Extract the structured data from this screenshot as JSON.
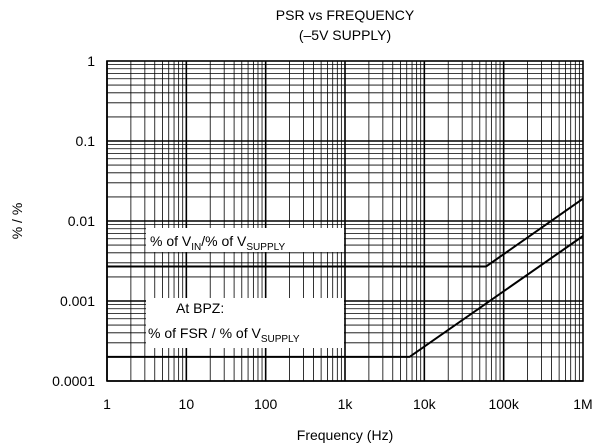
{
  "chart_data": {
    "type": "line",
    "title": "PSR vs FREQUENCY",
    "subtitle": "(–5V SUPPLY)",
    "xlabel": "Frequency (Hz)",
    "ylabel": "% / %",
    "xscale": "log",
    "yscale": "log",
    "xlim": [
      1,
      1000000
    ],
    "ylim": [
      0.0001,
      1
    ],
    "grid": true,
    "x_tick_labels": [
      "1",
      "10",
      "100",
      "1k",
      "10k",
      "100k",
      "1M"
    ],
    "y_tick_labels": [
      "0.0001",
      "0.001",
      "0.01",
      "0.1",
      "1"
    ],
    "series": [
      {
        "label_parts": [
          "% of V",
          "IN",
          "/% of V",
          "SUPPLY"
        ],
        "points": [
          [
            1,
            0.0027
          ],
          [
            60000,
            0.0027
          ],
          [
            1000000,
            0.019
          ]
        ]
      },
      {
        "label_line1": "At BPZ:",
        "label_parts": [
          "% of FSR / % of V",
          "SUPPLY"
        ],
        "points": [
          [
            1,
            0.0002
          ],
          [
            6500,
            0.0002
          ],
          [
            1000000,
            0.0065
          ]
        ]
      }
    ]
  }
}
